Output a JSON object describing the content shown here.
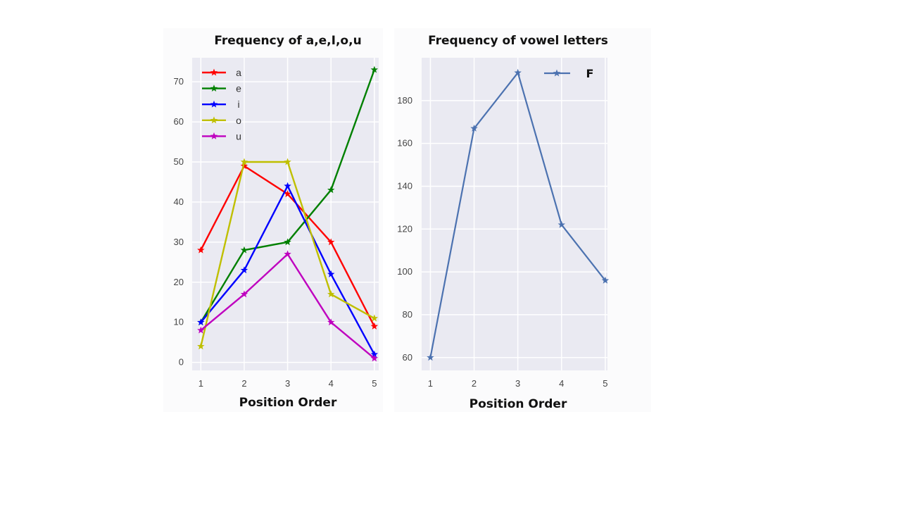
{
  "chart_data": [
    {
      "type": "line",
      "title": "Frequency of a,e,I,o,u",
      "xlabel": "Position Order",
      "ylabel": "",
      "x": [
        1,
        2,
        3,
        4,
        5
      ],
      "xticks": [
        "1",
        "2",
        "3",
        "4",
        "5"
      ],
      "yticks": [
        "0",
        "10",
        "20",
        "30",
        "40",
        "50",
        "60",
        "70"
      ],
      "ylim": [
        -2,
        76
      ],
      "xlim": [
        0.8,
        5.1
      ],
      "grid": true,
      "legend_position": "top-left",
      "series": [
        {
          "name": "a",
          "color": "#ff0000",
          "values": [
            28,
            49,
            42,
            30,
            9
          ]
        },
        {
          "name": "e",
          "color": "#008000",
          "values": [
            10,
            28,
            30,
            43,
            73
          ]
        },
        {
          "name": "i",
          "color": "#0000ff",
          "values": [
            10,
            23,
            44,
            22,
            2
          ]
        },
        {
          "name": "o",
          "color": "#bfbf00",
          "values": [
            4,
            50,
            50,
            17,
            11
          ]
        },
        {
          "name": "u",
          "color": "#bf00bf",
          "values": [
            8,
            17,
            27,
            10,
            1
          ]
        }
      ]
    },
    {
      "type": "line",
      "title": "Frequency of vowel letters",
      "xlabel": "Position Order",
      "ylabel": "",
      "x": [
        1,
        2,
        3,
        4,
        5
      ],
      "xticks": [
        "1",
        "2",
        "3",
        "4",
        "5"
      ],
      "yticks": [
        "60",
        "80",
        "100",
        "120",
        "140",
        "160",
        "180"
      ],
      "ylim": [
        54,
        200
      ],
      "xlim": [
        0.8,
        5.05
      ],
      "grid": true,
      "legend_position": "top-right",
      "series": [
        {
          "name": "F",
          "color": "#4c72b0",
          "values": [
            60,
            167,
            193,
            122,
            96
          ]
        }
      ]
    }
  ]
}
